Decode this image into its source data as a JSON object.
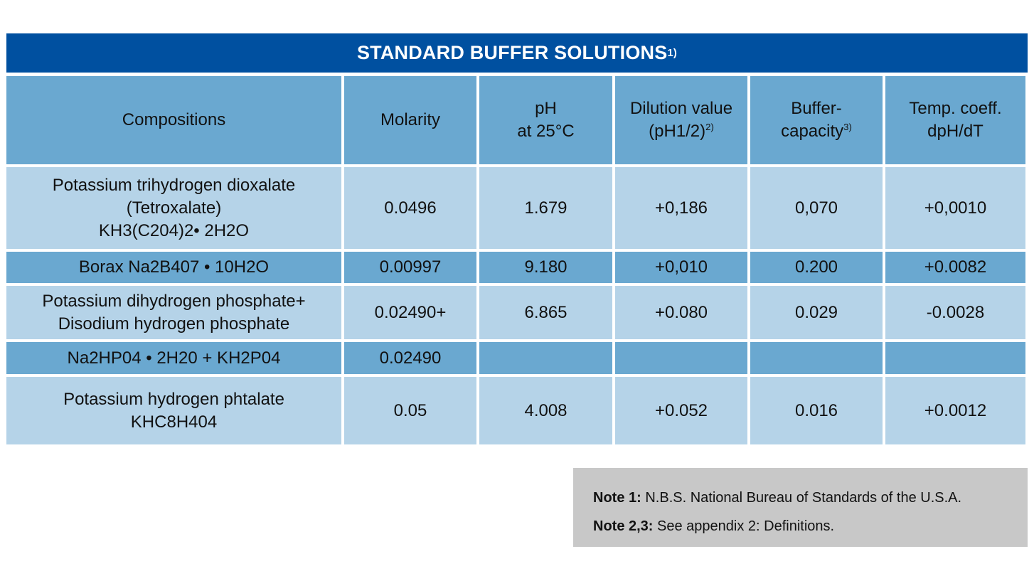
{
  "title": {
    "text": "STANDARD BUFFER SOLUTIONS",
    "sup": "1)"
  },
  "headers": {
    "compositions": "Compositions",
    "molarity": "Molarity",
    "ph_line1": "pH",
    "ph_line2": "at 25°C",
    "dilution_line1": "Dilution value",
    "dilution_line2": "(pH1/2)",
    "dilution_sup": "2)",
    "buffer_line1": "Buffer-",
    "buffer_line2": "capacity",
    "buffer_sup": "3)",
    "temp_line1": "Temp. coeff.",
    "temp_line2": "dpH/dT"
  },
  "rows": [
    {
      "composition": [
        "Potassium trihydrogen dioxalate",
        "(Tetroxalate)",
        "KH3(C204)2• 2H2O"
      ],
      "molarity": "0.0496",
      "ph": "1.679",
      "dilution": "+0,186",
      "buffer": "0,070",
      "temp": "+0,0010"
    },
    {
      "composition": [
        "Borax Na2B407 • 10H2O"
      ],
      "molarity": "0.00997",
      "ph": "9.180",
      "dilution": "+0,010",
      "buffer": "0.200",
      "temp": "+0.0082"
    },
    {
      "composition": [
        "Potassium dihydrogen phosphate+",
        "Disodium hydrogen phosphate"
      ],
      "molarity": "0.02490+",
      "ph": "6.865",
      "dilution": "+0.080",
      "buffer": "0.029",
      "temp": "-0.0028"
    },
    {
      "composition": [
        "Na2HP04 • 2H20 + KH2P04"
      ],
      "molarity": "0.02490",
      "ph": "",
      "dilution": "",
      "buffer": "",
      "temp": ""
    },
    {
      "composition": [
        "Potassium hydrogen phtalate",
        "KHC8H404"
      ],
      "molarity": "0.05",
      "ph": "4.008",
      "dilution": "+0.052",
      "buffer": "0.016",
      "temp": "+0.0012"
    }
  ],
  "notes": [
    {
      "label": "Note 1:",
      "text": " N.B.S. National Bureau of Standards of the U.S.A."
    },
    {
      "label": "Note 2,3:",
      "text": " See appendix 2: Definitions."
    }
  ],
  "colors": {
    "title_bg": "#0050a0",
    "header_bg": "#6aa8d0",
    "light_row": "#b5d3e8",
    "dark_row": "#6aa8d0",
    "note_bg": "#c8c8c8"
  }
}
